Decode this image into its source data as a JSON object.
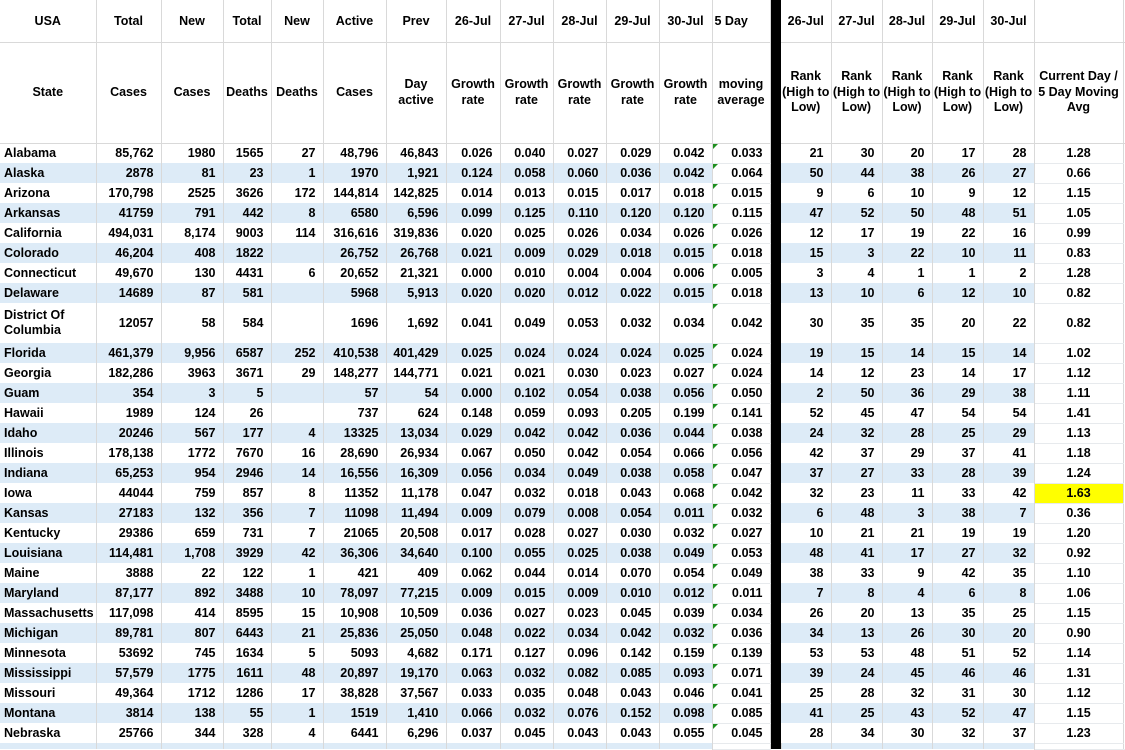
{
  "colors": {
    "band_blue": "#DDEBF7",
    "highlight_yellow": "#FFFF00",
    "divider_black": "#000000",
    "comment_indicator_green": "#1F8F1F",
    "grid_line": "#D9D9D9",
    "text": "#000000"
  },
  "table": {
    "columns": [
      {
        "key": "state",
        "h1": "USA",
        "h2": "State",
        "width": 96,
        "align": "left"
      },
      {
        "key": "total_cases",
        "h1": "Total",
        "h2": "Cases",
        "width": 65,
        "align": "right"
      },
      {
        "key": "new_cases",
        "h1": "New",
        "h2": "Cases",
        "width": 62,
        "align": "right"
      },
      {
        "key": "total_deaths",
        "h1": "Total",
        "h2": "Deaths",
        "width": 48,
        "align": "right"
      },
      {
        "key": "new_deaths",
        "h1": "New",
        "h2": "Deaths",
        "width": 52,
        "align": "right"
      },
      {
        "key": "active_cases",
        "h1": "Active",
        "h2": "Cases",
        "width": 63,
        "align": "right"
      },
      {
        "key": "prev_day_active",
        "h1": "Prev",
        "h2": "Day active",
        "width": 60,
        "align": "right"
      },
      {
        "key": "growth_26jul",
        "h1": "26-Jul",
        "h2": "Growth rate",
        "width": 54,
        "align": "right"
      },
      {
        "key": "growth_27jul",
        "h1": "27-Jul",
        "h2": "Growth rate",
        "width": 53,
        "align": "right"
      },
      {
        "key": "growth_28jul",
        "h1": "28-Jul",
        "h2": "Growth rate",
        "width": 53,
        "align": "right"
      },
      {
        "key": "growth_29jul",
        "h1": "29-Jul",
        "h2": "Growth rate",
        "width": 53,
        "align": "right"
      },
      {
        "key": "growth_30jul",
        "h1": "30-Jul",
        "h2": "Growth rate",
        "width": 53,
        "align": "right"
      },
      {
        "key": "moving_avg_5day",
        "h1": "5 Day",
        "h2": "moving average",
        "width": 58,
        "align": "right",
        "plain": true,
        "indicator": true,
        "h1_left": true
      },
      {
        "key": "divider",
        "h1": "",
        "h2": "",
        "width": 11,
        "divider": true
      },
      {
        "key": "rank_26jul",
        "h1": "26-Jul",
        "h2": "Rank (High to Low)",
        "width": 50,
        "align": "right"
      },
      {
        "key": "rank_27jul",
        "h1": "27-Jul",
        "h2": "Rank (High to Low)",
        "width": 51,
        "align": "right"
      },
      {
        "key": "rank_28jul",
        "h1": "28-Jul",
        "h2": "Rank (High to Low)",
        "width": 50,
        "align": "right"
      },
      {
        "key": "rank_29jul",
        "h1": "29-Jul",
        "h2": "Rank (High to Low)",
        "width": 51,
        "align": "right"
      },
      {
        "key": "rank_30jul",
        "h1": "30-Jul",
        "h2": "Rank (High to Low)",
        "width": 51,
        "align": "right"
      },
      {
        "key": "current_ratio",
        "h1": "",
        "h2": "Current Day / 5 Day Moving Avg",
        "width": 89,
        "align": "center",
        "plain": true
      },
      {
        "key": "spacer",
        "h1": "",
        "h2": "",
        "width": 2,
        "spacer": true
      }
    ],
    "rows": [
      {
        "state": "Alabama",
        "cells": [
          "85,762",
          "1980",
          "1565",
          "27",
          "48,796",
          "46,843",
          "0.026",
          "0.040",
          "0.027",
          "0.029",
          "0.042",
          "0.033",
          "21",
          "30",
          "20",
          "17",
          "28",
          "1.28"
        ]
      },
      {
        "state": "Alaska",
        "cells": [
          "2878",
          "81",
          "23",
          "1",
          "1970",
          "1,921",
          "0.124",
          "0.058",
          "0.060",
          "0.036",
          "0.042",
          "0.064",
          "50",
          "44",
          "38",
          "26",
          "27",
          "0.66"
        ]
      },
      {
        "state": "Arizona",
        "cells": [
          "170,798",
          "2525",
          "3626",
          "172",
          "144,814",
          "142,825",
          "0.014",
          "0.013",
          "0.015",
          "0.017",
          "0.018",
          "0.015",
          "9",
          "6",
          "10",
          "9",
          "12",
          "1.15"
        ]
      },
      {
        "state": "Arkansas",
        "cells": [
          "41759",
          "791",
          "442",
          "8",
          "6580",
          "6,596",
          "0.099",
          "0.125",
          "0.110",
          "0.120",
          "0.120",
          "0.115",
          "47",
          "52",
          "50",
          "48",
          "51",
          "1.05"
        ]
      },
      {
        "state": "California",
        "cells": [
          "494,031",
          "8,174",
          "9003",
          "114",
          "316,616",
          "319,836",
          "0.020",
          "0.025",
          "0.026",
          "0.034",
          "0.026",
          "0.026",
          "12",
          "17",
          "19",
          "22",
          "16",
          "0.99"
        ]
      },
      {
        "state": "Colorado",
        "cells": [
          "46,204",
          "408",
          "1822",
          "",
          "26,752",
          "26,768",
          "0.021",
          "0.009",
          "0.029",
          "0.018",
          "0.015",
          "0.018",
          "15",
          "3",
          "22",
          "10",
          "11",
          "0.83"
        ]
      },
      {
        "state": "Connecticut",
        "cells": [
          "49,670",
          "130",
          "4431",
          "6",
          "20,652",
          "21,321",
          "0.000",
          "0.010",
          "0.004",
          "0.004",
          "0.006",
          "0.005",
          "3",
          "4",
          "1",
          "1",
          "2",
          "1.28"
        ]
      },
      {
        "state": "Delaware",
        "cells": [
          "14689",
          "87",
          "581",
          "",
          "5968",
          "5,913",
          "0.020",
          "0.020",
          "0.012",
          "0.022",
          "0.015",
          "0.018",
          "13",
          "10",
          "6",
          "12",
          "10",
          "0.82"
        ]
      },
      {
        "state": "District Of Columbia",
        "cells": [
          "12057",
          "58",
          "584",
          "",
          "1696",
          "1,692",
          "0.041",
          "0.049",
          "0.053",
          "0.032",
          "0.034",
          "0.042",
          "30",
          "35",
          "35",
          "20",
          "22",
          "0.82"
        ],
        "tall": true
      },
      {
        "state": "Florida",
        "cells": [
          "461,379",
          "9,956",
          "6587",
          "252",
          "410,538",
          "401,429",
          "0.025",
          "0.024",
          "0.024",
          "0.024",
          "0.025",
          "0.024",
          "19",
          "15",
          "14",
          "15",
          "14",
          "1.02"
        ]
      },
      {
        "state": "Georgia",
        "cells": [
          "182,286",
          "3963",
          "3671",
          "29",
          "148,277",
          "144,771",
          "0.021",
          "0.021",
          "0.030",
          "0.023",
          "0.027",
          "0.024",
          "14",
          "12",
          "23",
          "14",
          "17",
          "1.12"
        ]
      },
      {
        "state": "Guam",
        "cells": [
          "354",
          "3",
          "5",
          "",
          "57",
          "54",
          "0.000",
          "0.102",
          "0.054",
          "0.038",
          "0.056",
          "0.050",
          "2",
          "50",
          "36",
          "29",
          "38",
          "1.11"
        ]
      },
      {
        "state": "Hawaii",
        "cells": [
          "1989",
          "124",
          "26",
          "",
          "737",
          "624",
          "0.148",
          "0.059",
          "0.093",
          "0.205",
          "0.199",
          "0.141",
          "52",
          "45",
          "47",
          "54",
          "54",
          "1.41"
        ]
      },
      {
        "state": "Idaho",
        "cells": [
          "20246",
          "567",
          "177",
          "4",
          "13325",
          "13,034",
          "0.029",
          "0.042",
          "0.042",
          "0.036",
          "0.044",
          "0.038",
          "24",
          "32",
          "28",
          "25",
          "29",
          "1.13"
        ]
      },
      {
        "state": "Illinois",
        "cells": [
          "178,138",
          "1772",
          "7670",
          "16",
          "28,690",
          "26,934",
          "0.067",
          "0.050",
          "0.042",
          "0.054",
          "0.066",
          "0.056",
          "42",
          "37",
          "29",
          "37",
          "41",
          "1.18"
        ]
      },
      {
        "state": "Indiana",
        "cells": [
          "65,253",
          "954",
          "2946",
          "14",
          "16,556",
          "16,309",
          "0.056",
          "0.034",
          "0.049",
          "0.038",
          "0.058",
          "0.047",
          "37",
          "27",
          "33",
          "28",
          "39",
          "1.24"
        ]
      },
      {
        "state": "Iowa",
        "cells": [
          "44044",
          "759",
          "857",
          "8",
          "11352",
          "11,178",
          "0.047",
          "0.032",
          "0.018",
          "0.043",
          "0.068",
          "0.042",
          "32",
          "23",
          "11",
          "33",
          "42",
          "1.63"
        ],
        "highlight": true
      },
      {
        "state": "Kansas",
        "cells": [
          "27183",
          "132",
          "356",
          "7",
          "11098",
          "11,494",
          "0.009",
          "0.079",
          "0.008",
          "0.054",
          "0.011",
          "0.032",
          "6",
          "48",
          "3",
          "38",
          "7",
          "0.36"
        ]
      },
      {
        "state": "Kentucky",
        "cells": [
          "29386",
          "659",
          "731",
          "7",
          "21065",
          "20,508",
          "0.017",
          "0.028",
          "0.027",
          "0.030",
          "0.032",
          "0.027",
          "10",
          "21",
          "21",
          "19",
          "19",
          "1.20"
        ]
      },
      {
        "state": "Louisiana",
        "cells": [
          "114,481",
          "1,708",
          "3929",
          "42",
          "36,306",
          "34,640",
          "0.100",
          "0.055",
          "0.025",
          "0.038",
          "0.049",
          "0.053",
          "48",
          "41",
          "17",
          "27",
          "32",
          "0.92"
        ]
      },
      {
        "state": "Maine",
        "cells": [
          "3888",
          "22",
          "122",
          "1",
          "421",
          "409",
          "0.062",
          "0.044",
          "0.014",
          "0.070",
          "0.054",
          "0.049",
          "38",
          "33",
          "9",
          "42",
          "35",
          "1.10"
        ]
      },
      {
        "state": "Maryland",
        "cells": [
          "87,177",
          "892",
          "3488",
          "10",
          "78,097",
          "77,215",
          "0.009",
          "0.015",
          "0.009",
          "0.010",
          "0.012",
          "0.011",
          "7",
          "8",
          "4",
          "6",
          "8",
          "1.06"
        ]
      },
      {
        "state": "Massachusetts",
        "cells": [
          "117,098",
          "414",
          "8595",
          "15",
          "10,908",
          "10,509",
          "0.036",
          "0.027",
          "0.023",
          "0.045",
          "0.039",
          "0.034",
          "26",
          "20",
          "13",
          "35",
          "25",
          "1.15"
        ]
      },
      {
        "state": "Michigan",
        "cells": [
          "89,781",
          "807",
          "6443",
          "21",
          "25,836",
          "25,050",
          "0.048",
          "0.022",
          "0.034",
          "0.042",
          "0.032",
          "0.036",
          "34",
          "13",
          "26",
          "30",
          "20",
          "0.90"
        ]
      },
      {
        "state": "Minnesota",
        "cells": [
          "53692",
          "745",
          "1634",
          "5",
          "5093",
          "4,682",
          "0.171",
          "0.127",
          "0.096",
          "0.142",
          "0.159",
          "0.139",
          "53",
          "53",
          "48",
          "51",
          "52",
          "1.14"
        ]
      },
      {
        "state": "Mississippi",
        "cells": [
          "57,579",
          "1775",
          "1611",
          "48",
          "20,897",
          "19,170",
          "0.063",
          "0.032",
          "0.082",
          "0.085",
          "0.093",
          "0.071",
          "39",
          "24",
          "45",
          "46",
          "46",
          "1.31"
        ]
      },
      {
        "state": "Missouri",
        "cells": [
          "49,364",
          "1712",
          "1286",
          "17",
          "38,828",
          "37,567",
          "0.033",
          "0.035",
          "0.048",
          "0.043",
          "0.046",
          "0.041",
          "25",
          "28",
          "32",
          "31",
          "30",
          "1.12"
        ]
      },
      {
        "state": "Montana",
        "cells": [
          "3814",
          "138",
          "55",
          "1",
          "1519",
          "1,410",
          "0.066",
          "0.032",
          "0.076",
          "0.152",
          "0.098",
          "0.085",
          "41",
          "25",
          "43",
          "52",
          "47",
          "1.15"
        ]
      },
      {
        "state": "Nebraska",
        "cells": [
          "25766",
          "344",
          "328",
          "4",
          "6441",
          "6,296",
          "0.037",
          "0.045",
          "0.043",
          "0.043",
          "0.055",
          "0.045",
          "28",
          "34",
          "30",
          "32",
          "37",
          "1.23"
        ]
      }
    ]
  }
}
